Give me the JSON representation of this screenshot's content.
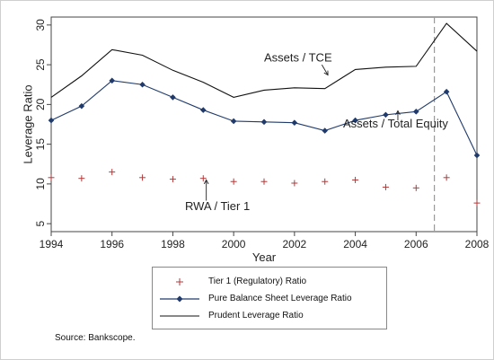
{
  "chart_data": {
    "type": "line",
    "xlabel": "Year",
    "ylabel": "Leverage Ratio",
    "xlim": [
      1994,
      2008
    ],
    "ylim": [
      4,
      31
    ],
    "x_ticks": [
      1994,
      1996,
      1998,
      2000,
      2002,
      2004,
      2006,
      2008
    ],
    "y_ticks": [
      5,
      10,
      15,
      20,
      25,
      30
    ],
    "x": [
      1994,
      1995,
      1996,
      1997,
      1998,
      1999,
      2000,
      2001,
      2002,
      2003,
      2004,
      2005,
      2006,
      2007,
      2008
    ],
    "series": [
      {
        "name": "Tier 1 (Regulatory) Ratio",
        "style": "markers-plus",
        "color": "#b03a3a",
        "values": [
          10.8,
          10.7,
          11.5,
          10.8,
          10.6,
          10.7,
          10.3,
          10.3,
          10.1,
          10.3,
          10.5,
          9.6,
          9.5,
          10.8,
          7.6
        ]
      },
      {
        "name": "Pure Balance Sheet Leverage Ratio",
        "style": "line-diamond",
        "color": "#1f3a6b",
        "values": [
          18.0,
          19.8,
          23.0,
          22.5,
          20.9,
          19.3,
          17.9,
          17.8,
          17.7,
          16.7,
          18.0,
          18.7,
          19.1,
          21.6,
          13.6
        ]
      },
      {
        "name": "Prudent Leverage Ratio",
        "style": "line",
        "color": "#111111",
        "values": [
          20.9,
          23.6,
          26.9,
          26.2,
          24.3,
          22.8,
          20.9,
          21.8,
          22.1,
          22.0,
          24.4,
          24.7,
          24.8,
          30.2,
          26.7
        ]
      }
    ],
    "vline": {
      "x": 2006.6,
      "style": "dashed",
      "color": "#999999"
    },
    "annotations": [
      {
        "text": "Assets / TCE",
        "x": 2001.0,
        "y": 25.4,
        "arrow_to": [
          2003.1,
          23.7
        ]
      },
      {
        "text": "Assets / Total Equity",
        "x": 2003.6,
        "y": 17.1,
        "arrow_to": [
          2005.4,
          19.2
        ]
      },
      {
        "text": "RWA / Tier 1",
        "x": 1998.4,
        "y": 6.7,
        "arrow_to": [
          1999.1,
          10.5
        ]
      }
    ],
    "grid": false,
    "legend_position": "bottom"
  },
  "source_note": "Source: Bankscope."
}
